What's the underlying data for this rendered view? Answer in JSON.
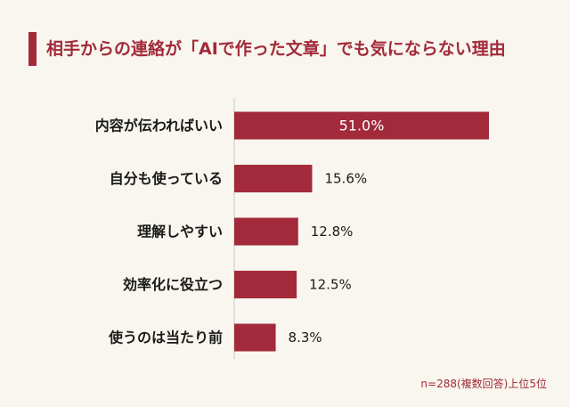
{
  "title": "相手からの連絡が「AIで作った文章」でも気にならない理由",
  "footnote": "n=288(複数回答)上位5位",
  "colors": {
    "bar": "#a22a3a",
    "accent": "#a22a3a",
    "label": "#1a1a1a",
    "value_inside": "#ffffff",
    "axis": "#c8c8c8"
  },
  "chart_data": {
    "type": "bar",
    "orientation": "horizontal",
    "title": "相手からの連絡が「AIで作った文章」でも気にならない理由",
    "categories": [
      "内容が伝わればいい",
      "自分も使っている",
      "理解しやすい",
      "効率化に役立つ",
      "使うのは当たり前"
    ],
    "values": [
      51.0,
      15.6,
      12.8,
      12.5,
      8.3
    ],
    "value_labels": [
      "51.0%",
      "15.6%",
      "12.8%",
      "12.5%",
      "8.3%"
    ],
    "xlabel": "",
    "ylabel": "",
    "xlim": [
      0,
      51.0
    ],
    "grid": false,
    "legend": "none"
  }
}
